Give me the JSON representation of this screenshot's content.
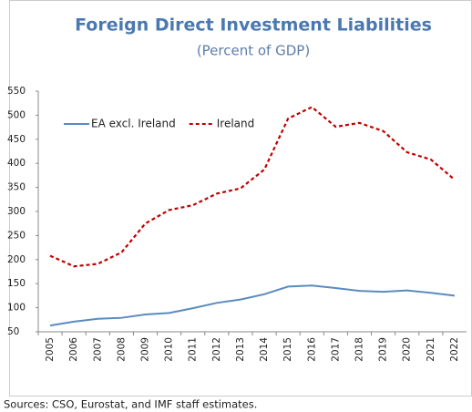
{
  "chart_data": {
    "type": "line",
    "title": "Foreign Direct Investment Liabilities",
    "subtitle": "(Percent of GDP)",
    "categories": [
      "2005",
      "2006",
      "2007",
      "2008",
      "2009",
      "2010",
      "2011",
      "2012",
      "2013",
      "2014",
      "2015",
      "2016",
      "2017",
      "2018",
      "2019",
      "2020",
      "2021",
      "2022"
    ],
    "series": [
      {
        "name": "EA excl. Ireland",
        "color": "#5b8bbf",
        "dash": false,
        "values": [
          63,
          71,
          77,
          79,
          86,
          89,
          99,
          110,
          117,
          128,
          144,
          146,
          141,
          135,
          133,
          136,
          131,
          125
        ]
      },
      {
        "name": "Ireland",
        "color": "#c00000",
        "dash": true,
        "values": [
          208,
          186,
          191,
          215,
          275,
          303,
          313,
          337,
          348,
          387,
          493,
          517,
          476,
          484,
          467,
          423,
          408,
          366
        ]
      }
    ],
    "ylim": [
      50,
      550
    ],
    "yticks": [
      50,
      100,
      150,
      200,
      250,
      300,
      350,
      400,
      450,
      500,
      550
    ],
    "grid": false,
    "legend": "upper left",
    "note": "Sources: CSO, Eurostat, and IMF staff estimates."
  }
}
